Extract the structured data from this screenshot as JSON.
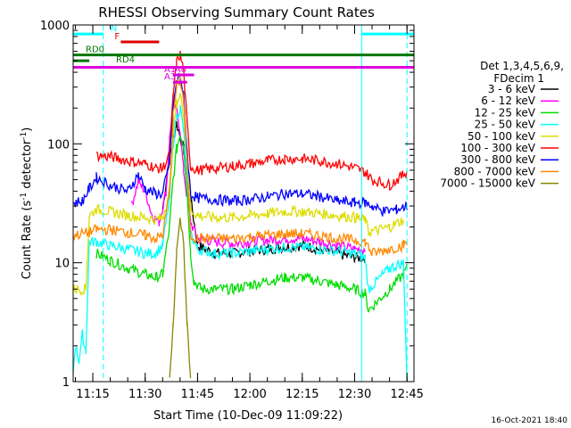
{
  "chart_data": {
    "type": "line",
    "title": "RHESSI Observing Summary Count Rates",
    "xlabel": "Start Time (10-Dec-09 11:09:22)",
    "ylabel_main": "Count Rate (s",
    "ylabel_sup1": "-1",
    "ylabel_mid": " detector",
    "ylabel_sup2": "-1",
    "ylabel_end": ")",
    "y_scale": "log",
    "ylim": [
      1,
      1000
    ],
    "xlim": [
      "11:09:22",
      "12:47:00"
    ],
    "x_ticks": [
      "11:15",
      "11:30",
      "11:45",
      "12:00",
      "12:15",
      "12:30",
      "12:45"
    ],
    "y_ticks": [
      "1",
      "10",
      "100",
      "1000"
    ],
    "timestamp": "16-Oct-2021 18:40",
    "legend": {
      "header1": "Det 1,3,4,5,6,9,",
      "header2": "FDecim 1",
      "placement": "right"
    },
    "series": [
      {
        "name": "3 - 6 keV",
        "color": "#000000",
        "x": [
          "11:09:22",
          "11:13",
          "11:16",
          "11:19",
          "11:22",
          "11:25",
          "11:28",
          "11:31",
          "11:33",
          "11:35",
          "11:37",
          "11:39",
          "11:41",
          "11:43",
          "11:45",
          "11:50",
          "11:55",
          "12:00",
          "12:05",
          "12:10",
          "12:15",
          "12:20",
          "12:25",
          "12:30",
          "12:33",
          "12:35",
          "12:40",
          "12:43",
          "12:45"
        ],
        "y": [
          null,
          null,
          null,
          null,
          null,
          null,
          null,
          null,
          null,
          28,
          80,
          150,
          90,
          35,
          14,
          12,
          12,
          12.5,
          13,
          13.5,
          14,
          13,
          12,
          11,
          11,
          null,
          null,
          null,
          null
        ]
      },
      {
        "name": "6 - 12 keV",
        "color": "#ff00ff",
        "x": [
          "11:09:22",
          "11:13",
          "11:16",
          "11:18",
          "11:20",
          "11:23",
          "11:26",
          "11:28",
          "11:30",
          "11:32",
          "11:34",
          "11:36",
          "11:37",
          "11:38",
          "11:39",
          "11:40",
          "11:41",
          "11:43",
          "11:45",
          "11:50",
          "11:55",
          "12:00",
          "12:05",
          "12:10",
          "12:15",
          "12:20",
          "12:25",
          "12:30",
          "12:33",
          "12:35",
          "12:40",
          "12:43",
          "12:45"
        ],
        "y": [
          null,
          null,
          null,
          null,
          null,
          null,
          30,
          48,
          40,
          25,
          22,
          40,
          110,
          210,
          200,
          130,
          60,
          22,
          16,
          15,
          14.5,
          15,
          15.5,
          16,
          16,
          15,
          14,
          13,
          13,
          null,
          null,
          null,
          null
        ]
      },
      {
        "name": "12 - 25 keV",
        "color": "#00dd00",
        "x": [
          "11:09:22",
          "11:13",
          "11:14",
          "11:16",
          "11:20",
          "11:25",
          "11:30",
          "11:33",
          "11:35",
          "11:37",
          "11:38",
          "11:39",
          "11:40",
          "11:41",
          "11:42",
          "11:43",
          "11:44",
          "11:46",
          "11:50",
          "11:55",
          "12:00",
          "12:05",
          "12:10",
          "12:15",
          "12:20",
          "12:25",
          "12:30",
          "12:33",
          "12:34",
          "12:40",
          "12:44",
          "12:45"
        ],
        "y": [
          null,
          null,
          null,
          12,
          10.5,
          9,
          8,
          7.5,
          8,
          20,
          50,
          90,
          120,
          100,
          40,
          12,
          7,
          6,
          6,
          6,
          6.5,
          7,
          7.5,
          7.5,
          7,
          6.5,
          6,
          5.5,
          4,
          6,
          8,
          9
        ]
      },
      {
        "name": "25 - 50 keV",
        "color": "#00ffff",
        "x": [
          "11:09:22",
          "11:10",
          "11:11",
          "11:12",
          "11:13",
          "11:14",
          "11:16",
          "11:20",
          "11:25",
          "11:30",
          "11:33",
          "11:35",
          "11:37",
          "11:38",
          "11:39",
          "11:40",
          "11:41",
          "11:42",
          "11:43",
          "11:45",
          "11:50",
          "11:55",
          "12:00",
          "12:05",
          "12:10",
          "12:15",
          "12:20",
          "12:25",
          "12:30",
          "12:33",
          "12:34",
          "12:40",
          "12:44",
          "12:45"
        ],
        "y": [
          1.2,
          2,
          1.5,
          2.5,
          1.8,
          15,
          15,
          14,
          13,
          12,
          12,
          14,
          35,
          100,
          170,
          200,
          130,
          50,
          18,
          13,
          12,
          12,
          12.5,
          13,
          13.5,
          13.5,
          13,
          12.5,
          12,
          11,
          6,
          9,
          10,
          1
        ]
      },
      {
        "name": "50 - 100 keV",
        "color": "#dddd00",
        "x": [
          "11:09:22",
          "11:10",
          "11:13",
          "11:14",
          "11:16",
          "11:20",
          "11:25",
          "11:30",
          "11:33",
          "11:35",
          "11:37",
          "11:38",
          "11:39",
          "11:40",
          "11:41",
          "11:42",
          "11:43",
          "11:45",
          "11:50",
          "11:55",
          "12:00",
          "12:05",
          "12:10",
          "12:15",
          "12:20",
          "12:25",
          "12:30",
          "12:33",
          "12:34",
          "12:40",
          "12:44",
          "12:45"
        ],
        "y": [
          6,
          6,
          6,
          25,
          28,
          27,
          25,
          24,
          23,
          24,
          40,
          120,
          220,
          260,
          180,
          80,
          28,
          25,
          24,
          24,
          25,
          26,
          27,
          27,
          26,
          25,
          24,
          23,
          18,
          20,
          23,
          null
        ]
      },
      {
        "name": "100 - 300 keV",
        "color": "#ff0000",
        "x": [
          "11:09:22",
          "11:13",
          "11:15",
          "11:16",
          "11:20",
          "11:25",
          "11:30",
          "11:33",
          "11:35",
          "11:37",
          "11:38",
          "11:39",
          "11:40",
          "11:41",
          "11:42",
          "11:43",
          "11:45",
          "11:50",
          "11:55",
          "12:00",
          "12:05",
          "12:10",
          "12:15",
          "12:20",
          "12:25",
          "12:30",
          "12:33",
          "12:35",
          "12:40",
          "12:44",
          "12:45"
        ],
        "y": [
          null,
          null,
          null,
          80,
          78,
          72,
          68,
          63,
          62,
          80,
          250,
          480,
          560,
          420,
          150,
          65,
          60,
          62,
          65,
          68,
          72,
          75,
          75,
          72,
          68,
          63,
          58,
          50,
          45,
          55,
          60
        ]
      },
      {
        "name": "300 - 800 keV",
        "color": "#0000ff",
        "x": [
          "11:09:22",
          "11:12",
          "11:14",
          "11:16",
          "11:20",
          "11:25",
          "11:28",
          "11:30",
          "11:33",
          "11:35",
          "11:37",
          "11:38",
          "11:39",
          "11:40",
          "11:41",
          "11:42",
          "11:43",
          "11:45",
          "11:50",
          "11:55",
          "12:00",
          "12:05",
          "12:10",
          "12:15",
          "12:20",
          "12:25",
          "12:30",
          "12:33",
          "12:35",
          "12:38",
          "12:42",
          "12:45"
        ],
        "y": [
          32,
          33,
          42,
          52,
          45,
          40,
          55,
          42,
          38,
          38,
          70,
          200,
          330,
          380,
          250,
          90,
          38,
          35,
          34,
          33,
          34,
          36,
          38,
          38,
          36,
          33,
          32,
          32,
          30,
          27,
          28,
          30
        ]
      },
      {
        "name": "800 - 7000 keV",
        "color": "#ff8800",
        "x": [
          "11:09:22",
          "11:14",
          "11:16",
          "11:20",
          "11:25",
          "11:30",
          "11:33",
          "11:35",
          "11:37",
          "11:38",
          "11:39",
          "11:40",
          "11:41",
          "11:42",
          "11:43",
          "11:45",
          "11:50",
          "11:55",
          "12:00",
          "12:05",
          "12:10",
          "12:15",
          "12:20",
          "12:25",
          "12:30",
          "12:33",
          "12:35",
          "12:40",
          "12:44",
          "12:45"
        ],
        "y": [
          17,
          18,
          19,
          19,
          18,
          17,
          16,
          17,
          40,
          170,
          300,
          350,
          230,
          70,
          17,
          16,
          16,
          16,
          16.5,
          17,
          17.5,
          17.5,
          17,
          16,
          15.5,
          15,
          12,
          13,
          14,
          15
        ]
      },
      {
        "name": "7000 - 15000 keV",
        "color": "#888800",
        "x": [
          "11:09:22",
          "11:37",
          "11:38",
          "11:39",
          "11:40",
          "11:41",
          "11:42",
          "11:43",
          "12:47:00"
        ],
        "y": [
          null,
          1,
          3,
          12,
          22,
          15,
          3,
          1,
          null
        ]
      }
    ],
    "annotations": {
      "bars": [
        {
          "label": "",
          "color": "#00ffff",
          "x0": "11:09:22",
          "x1": "11:18",
          "y": 840
        },
        {
          "label": "",
          "color": "#00ffff",
          "x0": "12:32",
          "x1": "12:47:00",
          "y": 840
        },
        {
          "label": "N",
          "color": "#00ffff",
          "x0": "11:18",
          "x1": "11:18",
          "y": 840
        },
        {
          "label": "F",
          "color": "#dd0000",
          "x0": "11:23",
          "x1": "11:34",
          "y": 720
        },
        {
          "label": "RD0",
          "color": "#007700",
          "x0": "11:09:22",
          "x1": "12:47:00",
          "y": 560
        },
        {
          "label": "RD4",
          "color": "#007700",
          "x0": "11:09:22",
          "x1": "11:14",
          "y": 500
        },
        {
          "label": "",
          "color": "#dd00dd",
          "x0": "11:09:22",
          "x1": "12:47:00",
          "y": 440
        },
        {
          "label": "A1",
          "color": "#dd00dd",
          "x0": "11:38",
          "x1": "11:43",
          "y": 380
        },
        {
          "label": "A0",
          "color": "#dd00dd",
          "x0": "11:41",
          "x1": "11:44",
          "y": 380
        },
        {
          "label": "A3",
          "color": "#dd00dd",
          "x0": "11:38",
          "x1": "11:42",
          "y": 330
        }
      ],
      "vlines": [
        {
          "x": "11:18",
          "color": "#00ffff",
          "style": "dashed"
        },
        {
          "x": "12:32",
          "color": "#00ffff",
          "style": "solid"
        },
        {
          "x": "12:45",
          "color": "#00ffff",
          "style": "dashed"
        }
      ]
    }
  }
}
